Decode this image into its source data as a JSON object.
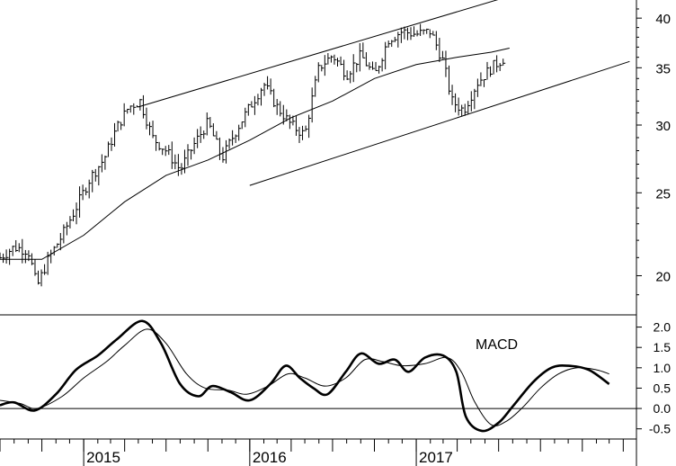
{
  "chart_data": [
    {
      "panel": "price",
      "type": "ohlc",
      "scale": "log",
      "ylim": [
        18,
        42
      ],
      "yticks": [
        20,
        25,
        30,
        35,
        40
      ],
      "x_range": [
        "2014-07-01",
        "2017-07-31"
      ],
      "series": [
        {
          "style": "weekly-bars",
          "values": [
            {
              "t": "2014-07-01",
              "c": 21.0
            },
            {
              "t": "2014-08-01",
              "c": 21.6
            },
            {
              "t": "2014-09-01",
              "c": 21.4
            },
            {
              "t": "2014-09-20",
              "c": 19.4
            },
            {
              "t": "2014-10-15",
              "c": 20.9
            },
            {
              "t": "2014-11-15",
              "c": 22.3
            },
            {
              "t": "2014-12-15",
              "c": 24.0
            },
            {
              "t": "2015-01-15",
              "c": 26.0
            },
            {
              "t": "2015-02-15",
              "c": 27.4
            },
            {
              "t": "2015-03-15",
              "c": 29.8
            },
            {
              "t": "2015-04-10",
              "c": 31.5
            },
            {
              "t": "2015-05-05",
              "c": 32.0
            },
            {
              "t": "2015-06-01",
              "c": 29.0
            },
            {
              "t": "2015-07-01",
              "c": 28.0
            },
            {
              "t": "2015-08-01",
              "c": 26.6
            },
            {
              "t": "2015-09-01",
              "c": 28.5
            },
            {
              "t": "2015-10-01",
              "c": 30.2
            },
            {
              "t": "2015-11-01",
              "c": 27.4
            },
            {
              "t": "2015-12-01",
              "c": 29.5
            },
            {
              "t": "2016-01-01",
              "c": 31.5
            },
            {
              "t": "2016-02-01",
              "c": 33.5
            },
            {
              "t": "2016-03-01",
              "c": 31.5
            },
            {
              "t": "2016-04-01",
              "c": 30.0
            },
            {
              "t": "2016-05-01",
              "c": 29.2
            },
            {
              "t": "2016-06-01",
              "c": 35.0
            },
            {
              "t": "2016-07-01",
              "c": 36.2
            },
            {
              "t": "2016-08-01",
              "c": 34.4
            },
            {
              "t": "2016-09-01",
              "c": 36.2
            },
            {
              "t": "2016-10-01",
              "c": 34.2
            },
            {
              "t": "2016-11-01",
              "c": 37.8
            },
            {
              "t": "2016-12-01",
              "c": 38.6
            },
            {
              "t": "2017-01-01",
              "c": 38.3
            },
            {
              "t": "2017-02-01",
              "c": 38.6
            },
            {
              "t": "2017-03-01",
              "c": 35.6
            },
            {
              "t": "2017-03-20",
              "c": 32.0
            },
            {
              "t": "2017-04-15",
              "c": 31.2
            },
            {
              "t": "2017-05-15",
              "c": 33.6
            },
            {
              "t": "2017-06-15",
              "c": 35.0
            },
            {
              "t": "2017-07-15",
              "c": 36.0
            }
          ]
        },
        {
          "style": "moving-average",
          "values": [
            {
              "t": "2014-07-01",
              "v": 20.9
            },
            {
              "t": "2014-10-01",
              "v": 20.9
            },
            {
              "t": "2015-01-01",
              "v": 22.3
            },
            {
              "t": "2015-04-01",
              "v": 24.4
            },
            {
              "t": "2015-07-01",
              "v": 26.2
            },
            {
              "t": "2015-10-01",
              "v": 27.3
            },
            {
              "t": "2016-01-01",
              "v": 28.8
            },
            {
              "t": "2016-04-01",
              "v": 30.6
            },
            {
              "t": "2016-07-01",
              "v": 32.0
            },
            {
              "t": "2016-10-01",
              "v": 34.0
            },
            {
              "t": "2017-01-01",
              "v": 35.3
            },
            {
              "t": "2017-04-01",
              "v": 36.0
            },
            {
              "t": "2017-06-15",
              "v": 36.5
            },
            {
              "t": "2017-07-25",
              "v": 36.9
            }
          ]
        },
        {
          "style": "channel-upper",
          "values": [
            {
              "t": "2015-05-01",
              "v": 31.5
            },
            {
              "t": "2017-11-01",
              "v": 44.0
            }
          ]
        },
        {
          "style": "channel-lower",
          "values": [
            {
              "t": "2016-01-01",
              "v": 25.5
            },
            {
              "t": "2018-04-15",
              "v": 35.6
            }
          ]
        }
      ]
    },
    {
      "panel": "indicator",
      "type": "line",
      "title": "MACD",
      "ylim": [
        -0.75,
        2.3
      ],
      "yticks": [
        -0.5,
        0.0,
        0.5,
        1.0,
        1.5,
        2.0
      ],
      "yticklabels": [
        "-0.5",
        "0.0",
        "0.5",
        "1.0",
        "1.5",
        "2.0"
      ],
      "zero_line": true,
      "series": [
        {
          "style": "thick",
          "values": [
            {
              "t": "2014-07-01",
              "v": 0.08
            },
            {
              "t": "2014-08-01",
              "v": 0.15
            },
            {
              "t": "2014-09-15",
              "v": -0.05
            },
            {
              "t": "2014-11-01",
              "v": 0.35
            },
            {
              "t": "2014-12-15",
              "v": 0.95
            },
            {
              "t": "2015-02-01",
              "v": 1.3
            },
            {
              "t": "2015-03-15",
              "v": 1.7
            },
            {
              "t": "2015-05-10",
              "v": 2.15
            },
            {
              "t": "2015-06-20",
              "v": 1.6
            },
            {
              "t": "2015-08-01",
              "v": 0.6
            },
            {
              "t": "2015-09-10",
              "v": 0.3
            },
            {
              "t": "2015-10-10",
              "v": 0.55
            },
            {
              "t": "2015-11-20",
              "v": 0.4
            },
            {
              "t": "2016-01-01",
              "v": 0.2
            },
            {
              "t": "2016-02-15",
              "v": 0.6
            },
            {
              "t": "2016-03-20",
              "v": 1.05
            },
            {
              "t": "2016-04-20",
              "v": 0.75
            },
            {
              "t": "2016-05-20",
              "v": 0.5
            },
            {
              "t": "2016-06-20",
              "v": 0.35
            },
            {
              "t": "2016-07-30",
              "v": 0.9
            },
            {
              "t": "2016-09-01",
              "v": 1.35
            },
            {
              "t": "2016-10-10",
              "v": 1.1
            },
            {
              "t": "2016-11-15",
              "v": 1.2
            },
            {
              "t": "2016-12-15",
              "v": 0.9
            },
            {
              "t": "2017-01-20",
              "v": 1.25
            },
            {
              "t": "2017-03-01",
              "v": 1.3
            },
            {
              "t": "2017-03-30",
              "v": 0.9
            },
            {
              "t": "2017-04-20",
              "v": -0.2
            },
            {
              "t": "2017-05-25",
              "v": -0.55
            },
            {
              "t": "2017-07-01",
              "v": -0.35
            },
            {
              "t": "2017-08-01",
              "v": 0.05
            },
            {
              "t": "2017-09-15",
              "v": 0.65
            },
            {
              "t": "2017-10-25",
              "v": 1.0
            },
            {
              "t": "2017-12-01",
              "v": 1.05
            },
            {
              "t": "2018-01-15",
              "v": 0.95
            },
            {
              "t": "2018-03-01",
              "v": 0.6
            }
          ]
        },
        {
          "style": "thin",
          "values": [
            {
              "t": "2014-07-01",
              "v": 0.2
            },
            {
              "t": "2014-08-15",
              "v": 0.12
            },
            {
              "t": "2014-09-20",
              "v": 0.0
            },
            {
              "t": "2014-11-15",
              "v": 0.3
            },
            {
              "t": "2015-01-01",
              "v": 0.75
            },
            {
              "t": "2015-02-20",
              "v": 1.15
            },
            {
              "t": "2015-04-01",
              "v": 1.55
            },
            {
              "t": "2015-05-20",
              "v": 1.95
            },
            {
              "t": "2015-07-01",
              "v": 1.6
            },
            {
              "t": "2015-08-15",
              "v": 0.85
            },
            {
              "t": "2015-09-25",
              "v": 0.5
            },
            {
              "t": "2015-11-15",
              "v": 0.45
            },
            {
              "t": "2015-12-25",
              "v": 0.35
            },
            {
              "t": "2016-02-10",
              "v": 0.55
            },
            {
              "t": "2016-03-25",
              "v": 0.85
            },
            {
              "t": "2016-05-01",
              "v": 0.75
            },
            {
              "t": "2016-06-15",
              "v": 0.55
            },
            {
              "t": "2016-07-30",
              "v": 0.75
            },
            {
              "t": "2016-09-10",
              "v": 1.2
            },
            {
              "t": "2016-10-20",
              "v": 1.15
            },
            {
              "t": "2016-12-01",
              "v": 1.05
            },
            {
              "t": "2017-01-20",
              "v": 1.1
            },
            {
              "t": "2017-03-10",
              "v": 1.25
            },
            {
              "t": "2017-04-10",
              "v": 0.9
            },
            {
              "t": "2017-05-10",
              "v": 0.15
            },
            {
              "t": "2017-06-15",
              "v": -0.4
            },
            {
              "t": "2017-07-20",
              "v": -0.3
            },
            {
              "t": "2017-08-25",
              "v": 0.05
            },
            {
              "t": "2017-10-01",
              "v": 0.5
            },
            {
              "t": "2017-11-10",
              "v": 0.85
            },
            {
              "t": "2017-12-20",
              "v": 1.0
            },
            {
              "t": "2018-02-01",
              "v": 0.95
            },
            {
              "t": "2018-03-01",
              "v": 0.85
            }
          ]
        }
      ]
    }
  ],
  "x_axis": {
    "range": [
      "2014-07-01",
      "2018-04-30"
    ],
    "labels": [
      {
        "text": "2015",
        "t": "2015-01-01"
      },
      {
        "text": "2016",
        "t": "2016-01-01"
      },
      {
        "text": "2017",
        "t": "2017-01-01"
      }
    ],
    "minor_ticks": "monthly-quarters"
  }
}
